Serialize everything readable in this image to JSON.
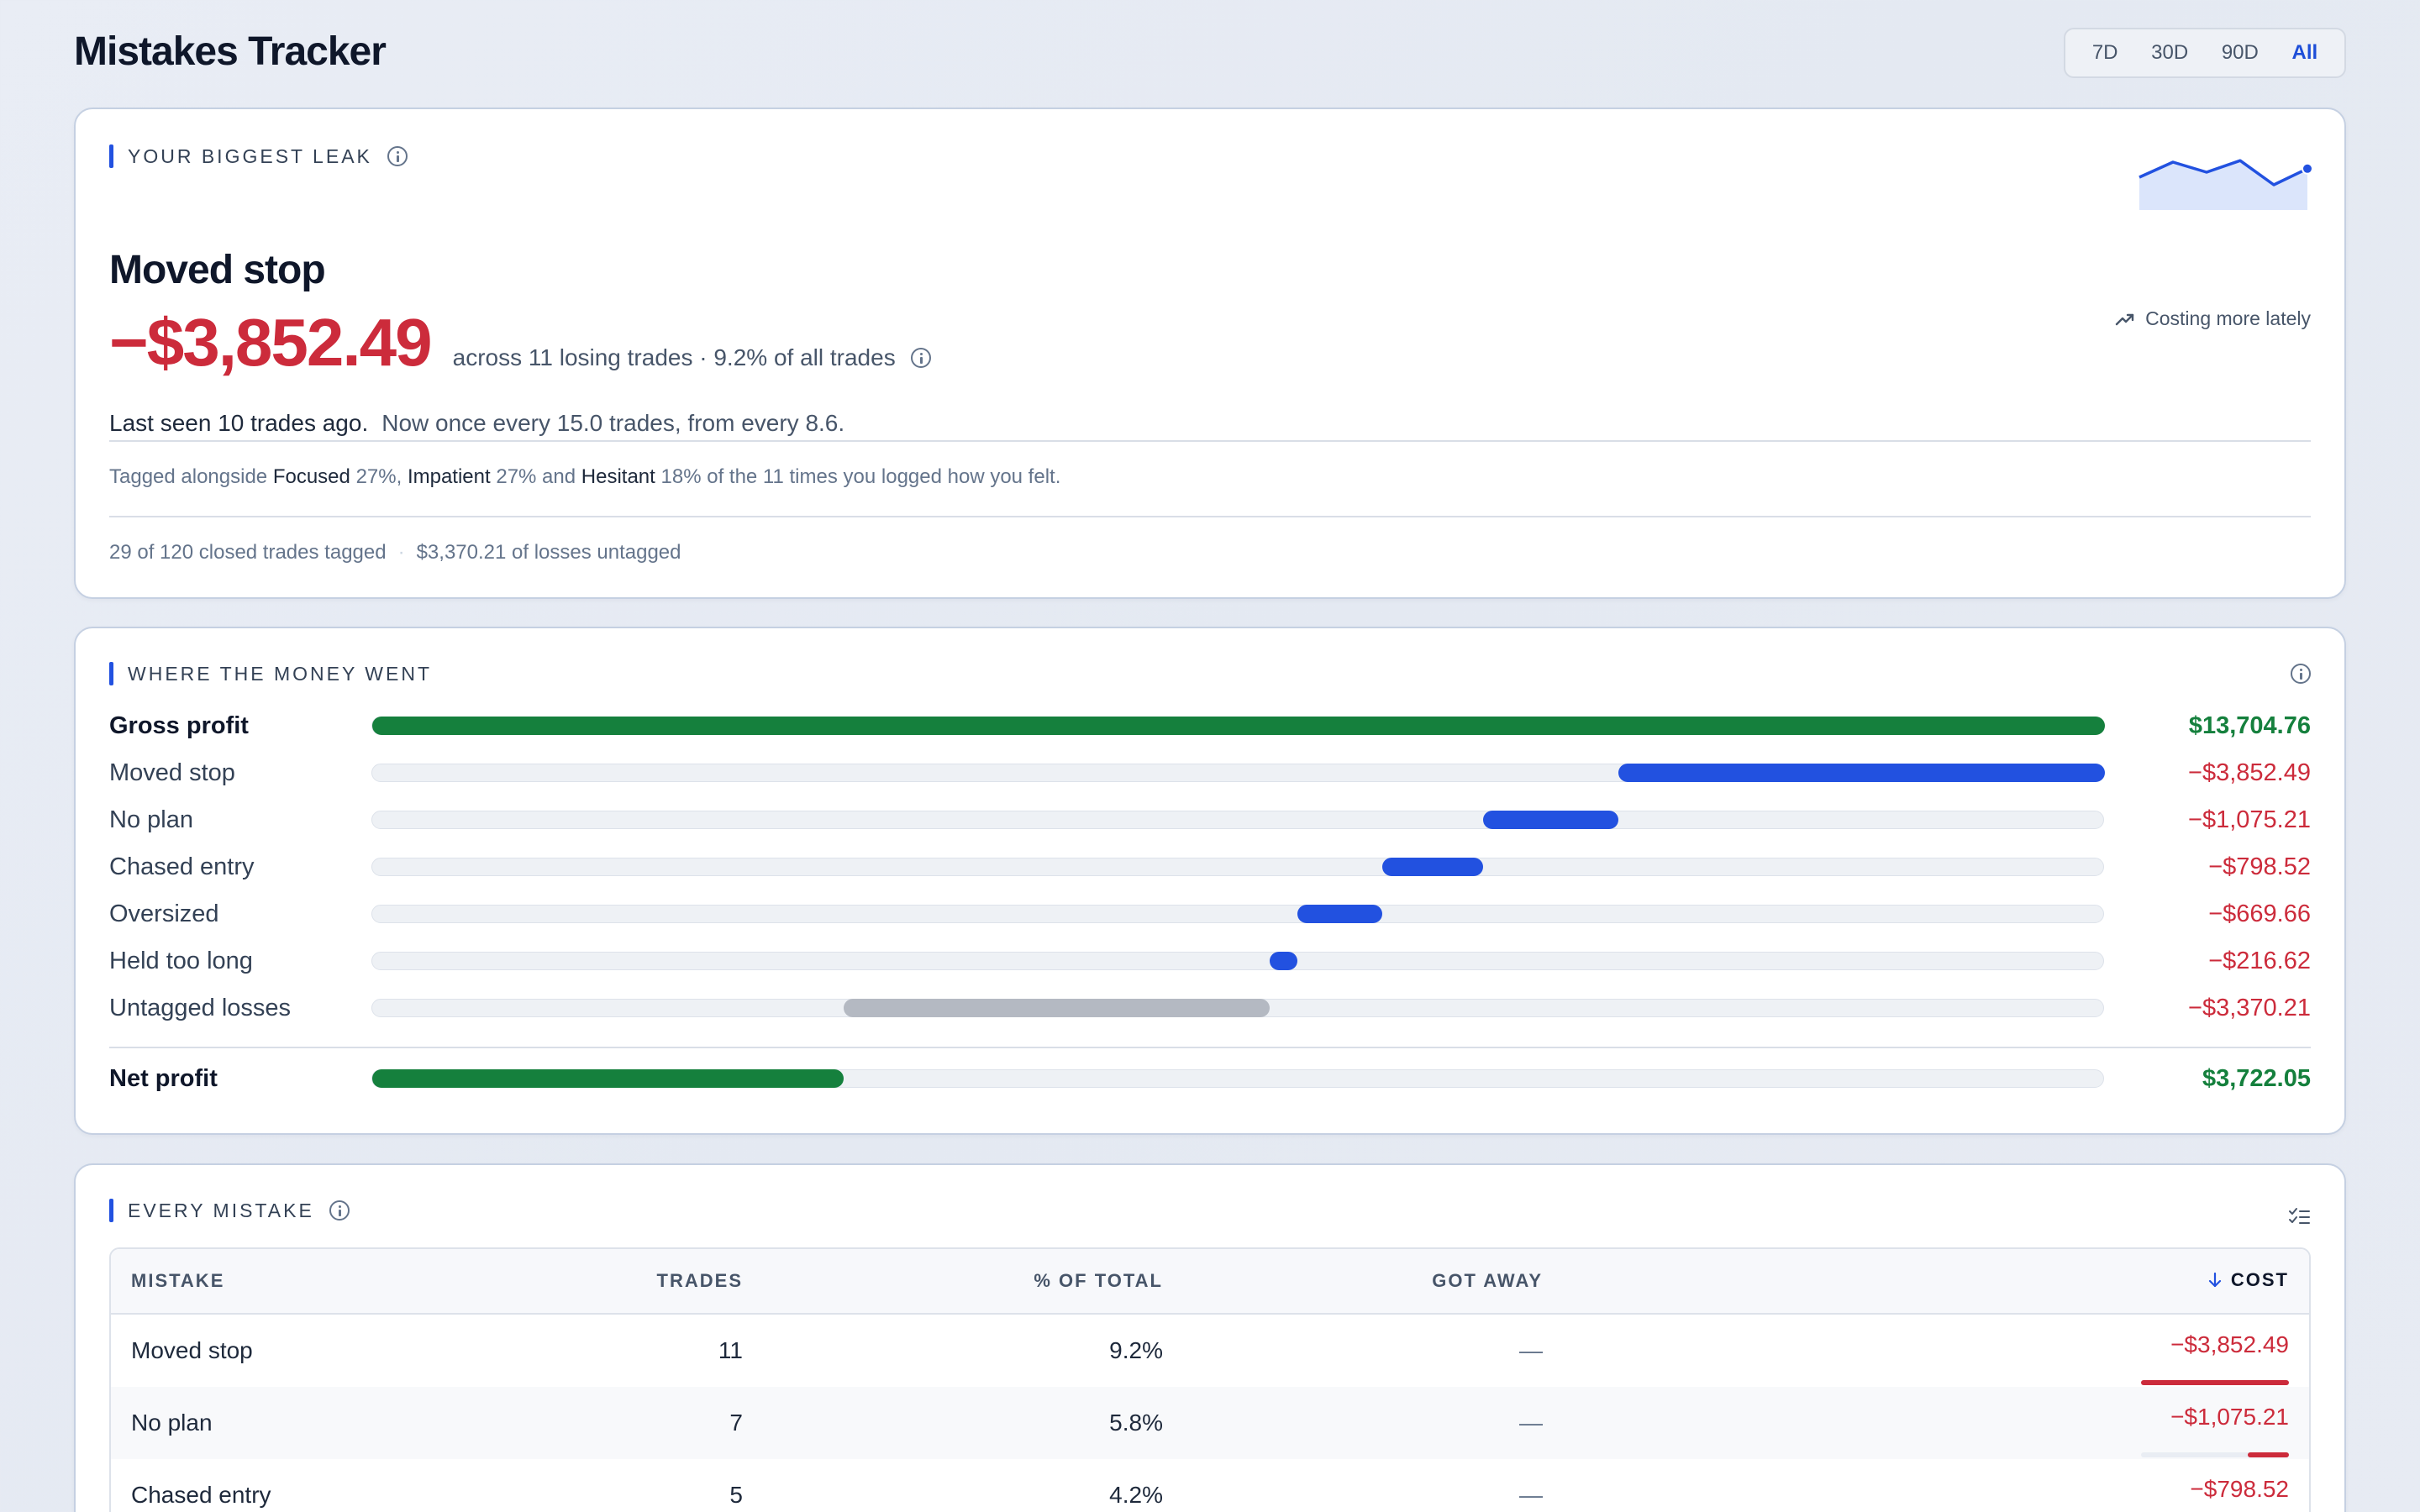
{
  "header": {
    "title": "Mistakes Tracker",
    "ranges": [
      "7D",
      "30D",
      "90D",
      "All"
    ],
    "active_range": "All"
  },
  "leak": {
    "section_label": "YOUR BIGGEST LEAK",
    "trend_note": "Costing more lately",
    "sparkline": [
      0.45,
      0.75,
      0.55,
      0.78,
      0.3,
      0.62
    ],
    "name": "Moved stop",
    "cost": "−$3,852.49",
    "context": "across 11 losing trades · 9.2% of all trades",
    "last_seen": "Last seen 10 trades ago.",
    "frequency": "Now once every 15.0 trades, from every 8.6.",
    "tagged": {
      "prefix": "Tagged alongside",
      "emotions": [
        {
          "name": "Focused",
          "pct": "27%"
        },
        {
          "name": "Impatient",
          "pct": "27%"
        },
        {
          "name": "Hesitant",
          "pct": "18%"
        }
      ],
      "suffix": "of the 11 times you logged how you felt."
    },
    "footer_tagged": "29 of 120 closed trades tagged",
    "footer_untagged": "$3,370.21 of losses untagged"
  },
  "money": {
    "section_label": "WHERE THE MONEY WENT",
    "rows": [
      {
        "label": "Gross profit",
        "value": "$13,704.76",
        "start": 0.0,
        "end": 1.0,
        "kind": "gross"
      },
      {
        "label": "Moved stop",
        "value": "−$3,852.49",
        "start": 0.719,
        "end": 1.0,
        "kind": "mistake"
      },
      {
        "label": "No plan",
        "value": "−$1,075.21",
        "start": 0.641,
        "end": 0.719,
        "kind": "mistake"
      },
      {
        "label": "Chased entry",
        "value": "−$798.52",
        "start": 0.583,
        "end": 0.641,
        "kind": "mistake"
      },
      {
        "label": "Oversized",
        "value": "−$669.66",
        "start": 0.534,
        "end": 0.583,
        "kind": "mistake"
      },
      {
        "label": "Held too long",
        "value": "−$216.62",
        "start": 0.518,
        "end": 0.534,
        "kind": "mistake"
      },
      {
        "label": "Untagged losses",
        "value": "−$3,370.21",
        "start": 0.272,
        "end": 0.518,
        "kind": "untagged"
      }
    ],
    "net": {
      "label": "Net profit",
      "value": "$3,722.05",
      "start": 0.0,
      "end": 0.272
    }
  },
  "table": {
    "section_label": "EVERY MISTAKE",
    "headers": {
      "mistake": "MISTAKE",
      "trades": "TRADES",
      "pct": "% OF TOTAL",
      "away": "GOT AWAY",
      "cost": "COST"
    },
    "rows": [
      {
        "mistake": "Moved stop",
        "trades": "11",
        "pct": "9.2%",
        "away": "—",
        "cost": "−$3,852.49",
        "share": 1.0
      },
      {
        "mistake": "No plan",
        "trades": "7",
        "pct": "5.8%",
        "away": "—",
        "cost": "−$1,075.21",
        "share": 0.28
      },
      {
        "mistake": "Chased entry",
        "trades": "5",
        "pct": "4.2%",
        "away": "—",
        "cost": "−$798.52",
        "share": 0.21
      }
    ]
  },
  "colors": {
    "accent": "#2251e0",
    "gain": "#15803d",
    "loss": "#cc2b3b",
    "untagged": "#b4b9c2"
  }
}
